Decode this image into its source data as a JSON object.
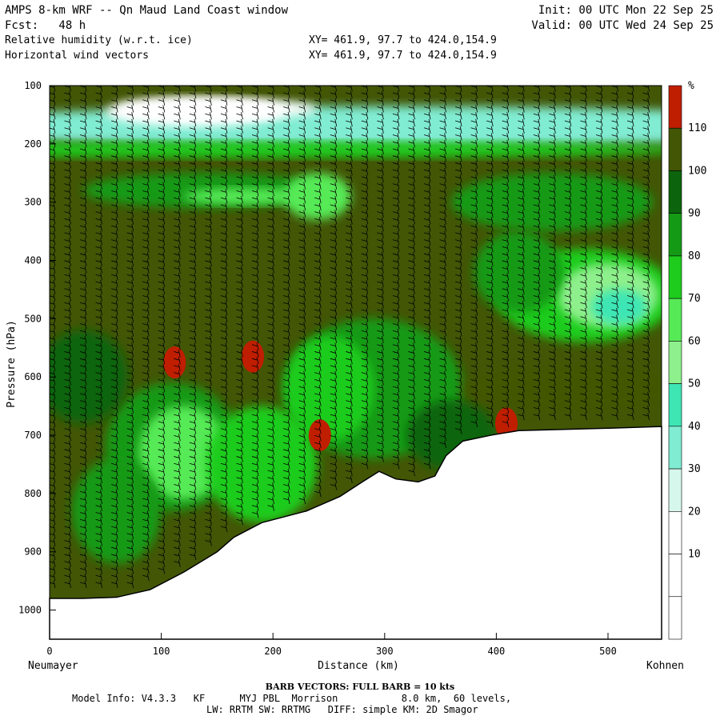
{
  "header": {
    "title": "AMPS 8-km WRF -- Qn Maud Land Coast window",
    "forecast": "Fcst:   48 h",
    "field1": "Relative humidity (w.r.t. ice)",
    "field2": "Horizontal wind vectors",
    "init": "Init: 00 UTC Mon 22 Sep 25",
    "valid": "Valid: 00 UTC Wed 24 Sep 25",
    "xy1": "XY= 461.9, 97.7 to 424.0,154.9",
    "xy2": "XY= 461.9, 97.7 to 424.0,154.9"
  },
  "footer": {
    "barb": "BARB VECTORS:  FULL BARB = 10 kts",
    "model1": "Model Info: V4.3.3   KF      MYJ PBL  Morrison           8.0 km,  60 levels,",
    "model2": "LW: RRTM SW: RRTMG   DIFF: simple KM: 2D Smagor"
  },
  "chart_data": {
    "type": "heatmap",
    "title": "Relative humidity (w.r.t. ice) cross-section with horizontal wind vectors",
    "xlabel": "Distance (km)",
    "ylabel": "Pressure (hPa)",
    "x_start_label": "Neumayer",
    "x_end_label": "Kohnen",
    "xlim": [
      0,
      548
    ],
    "ylim": [
      1050,
      100
    ],
    "x_ticks": [
      0,
      100,
      200,
      300,
      400,
      500
    ],
    "y_ticks": [
      100,
      200,
      300,
      400,
      500,
      600,
      700,
      800,
      900,
      1000
    ],
    "colorbar": {
      "unit": "%",
      "levels": [
        10,
        20,
        30,
        40,
        50,
        60,
        70,
        80,
        90,
        100,
        110
      ],
      "colors": [
        "#ffffff",
        "#ffffff",
        "#ffffff",
        "#d6f8ec",
        "#80ecd2",
        "#3ee6b4",
        "#8ef08c",
        "#57ea57",
        "#1dcc1d",
        "#159a15",
        "#0c650c",
        "#425606",
        "#c01e00"
      ]
    },
    "terrain_surface_hPa": [
      [
        0,
        980
      ],
      [
        30,
        980
      ],
      [
        60,
        978
      ],
      [
        90,
        965
      ],
      [
        120,
        935
      ],
      [
        150,
        900
      ],
      [
        165,
        875
      ],
      [
        190,
        850
      ],
      [
        230,
        830
      ],
      [
        260,
        805
      ],
      [
        280,
        780
      ],
      [
        295,
        762
      ],
      [
        310,
        775
      ],
      [
        330,
        780
      ],
      [
        345,
        770
      ],
      [
        355,
        735
      ],
      [
        370,
        710
      ],
      [
        395,
        700
      ],
      [
        420,
        692
      ],
      [
        460,
        690
      ],
      [
        500,
        688
      ],
      [
        548,
        685
      ]
    ],
    "moist_regions_over_110pct": [
      {
        "x": 112,
        "p": 575
      },
      {
        "x": 182,
        "p": 565
      },
      {
        "x": 242,
        "p": 700
      },
      {
        "x": 409,
        "p": 680
      }
    ],
    "dry_region_under_30pct": {
      "x_range": [
        50,
        210
      ],
      "p_range": [
        120,
        170
      ]
    }
  }
}
